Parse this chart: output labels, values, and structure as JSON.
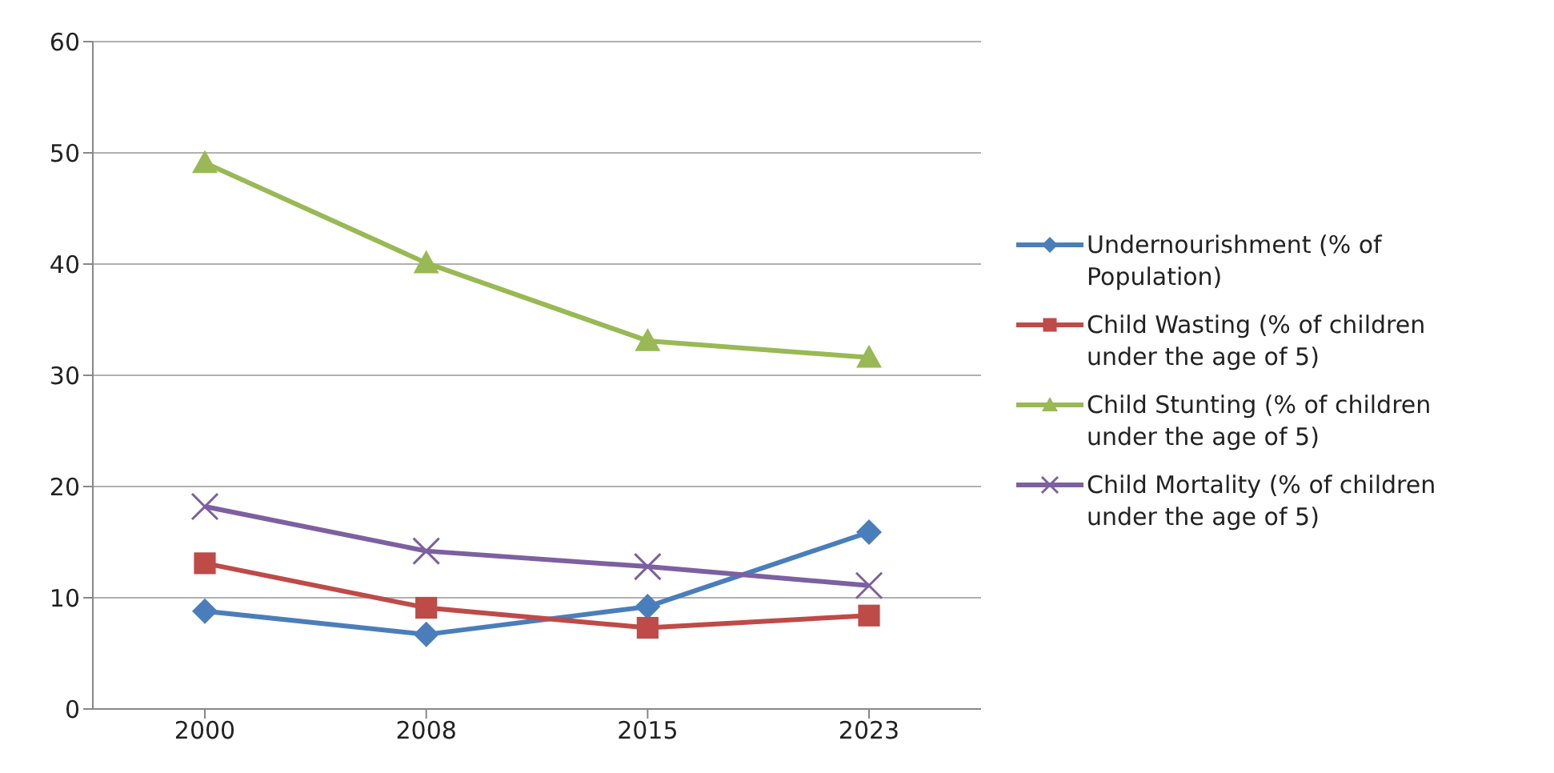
{
  "chart_data": {
    "type": "line",
    "categories": [
      "2000",
      "2008",
      "2015",
      "2023"
    ],
    "series": [
      {
        "name": "Undernourishment (% of Population)",
        "color": "#4a7ebb",
        "marker": "diamond",
        "values": [
          8.8,
          6.7,
          9.2,
          15.9
        ]
      },
      {
        "name": "Child Wasting (% of children under the age of 5)",
        "color": "#be4b48",
        "marker": "square",
        "values": [
          13.1,
          9.1,
          7.3,
          8.4
        ]
      },
      {
        "name": "Child Stunting (% of children under the age of 5)",
        "color": "#98b954",
        "marker": "triangle",
        "values": [
          49.1,
          40.1,
          33.1,
          31.6
        ]
      },
      {
        "name": "Child Mortality (% of children under the age of 5)",
        "color": "#7d60a0",
        "marker": "cross",
        "values": [
          18.2,
          14.2,
          12.8,
          11.1
        ]
      }
    ],
    "ylim": [
      0,
      60
    ],
    "yticks": [
      0,
      10,
      20,
      30,
      40,
      50,
      60
    ],
    "grid": "y",
    "legend": "right"
  }
}
